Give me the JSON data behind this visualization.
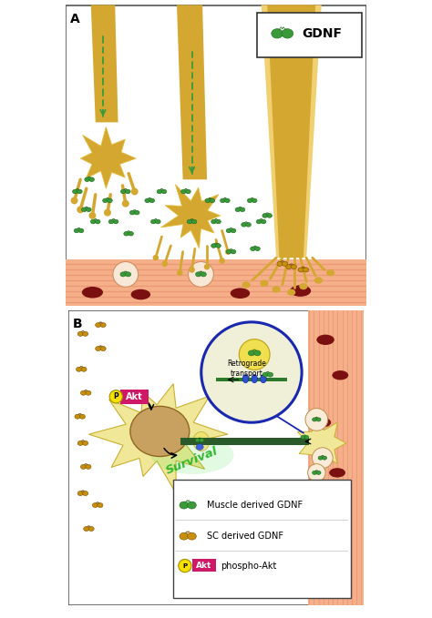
{
  "bg_color": "#ffffff",
  "muscle_bg_color": "#f5b08a",
  "muscle_stripe_color": "#e89070",
  "axon_golden": "#d4a830",
  "axon_light": "#f0d070",
  "axon_gradient_top": "#e8c040",
  "gdnf_green": "#3a9a3a",
  "gdnf_green_dark": "#1a6a1a",
  "gdnf_yellow": "#c8900a",
  "gdnf_yellow_dark": "#7a5000",
  "arrow_green": "#3a9a3a",
  "phosphoAkt_pink": "#d01868",
  "survival_green": "#20b020",
  "axon_bar_green": "#2a5a2a",
  "inset_blue": "#1a28b0",
  "inset_bg": "#f0f0d8",
  "nucleus_color": "#c8a060",
  "nucleus_edge": "#906820",
  "rbc_color": "#7a1010",
  "neuron_color": "#f0e898",
  "neuron_edge": "#c8b030",
  "gdnf_label": "GDNF",
  "muscle_label_A": "Muscle derived GDNF",
  "muscle_label_B": "SC derived GDNF",
  "phospho_label": "phospho-Akt",
  "retrograde_label": "Retrograde\ntransport",
  "survival_label": "Survival"
}
